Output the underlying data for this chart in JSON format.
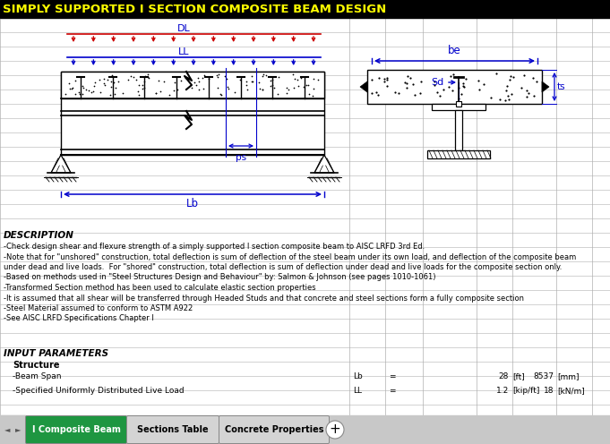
{
  "title": "SIMPLY SUPPORTED I SECTION COMPOSITE BEAM DESIGN",
  "title_bg": "#000000",
  "title_color": "#FFFF00",
  "bg_color": "#C0C0C0",
  "cell_bg": "#FFFFFF",
  "grid_color": "#B0B0B0",
  "blue": "#0000CC",
  "red": "#CC0000",
  "description_title": "DESCRIPTION",
  "description_lines": [
    "-Check design shear and flexure strength of a simply supported I section composite beam to AISC LRFD 3rd Ed.",
    "-Note that for \"unshored\" construction, total deflection is sum of deflection of the steel beam under its own load, and deflection of the composite beam",
    "under dead and live loads.  For \"shored\" construction, total deflection is sum of deflection under dead and live loads for the composite section only.",
    "-Based on methods used in \"Steel Structures Design and Behaviour\" by: Salmon & Johnson (see pages 1010-1061)",
    "-Transformed Section method has been used to calculate elastic section properties",
    "-It is assumed that all shear will be transferred through Headed Studs and that concrete and steel sections form a fully composite section",
    "-Steel Material assumed to conform to ASTM A922",
    "-See AISC LRFD Specifications Chapter I"
  ],
  "input_title": "INPUT PARAMETERS",
  "structure_label": "Structure",
  "beam_span_label": "-Beam Span",
  "beam_span_symbol": "Lb",
  "beam_span_eq": "=",
  "beam_span_val1": "28",
  "beam_span_unit1": "[ft]",
  "beam_span_val2": "8537",
  "beam_span_unit2": "[mm]",
  "live_load_label": "-Specified Uniformly Distributed Live Load",
  "live_load_symbol": "LL",
  "live_load_eq": "=",
  "live_load_val1": "1.2",
  "live_load_unit1": "[kip/ft]",
  "live_load_val2": "18",
  "live_load_unit2": "[kN/m]",
  "tabs": [
    "I Composite Beam",
    "Sections Table",
    "Concrete Properties"
  ],
  "tab_active_color": "#1E9641",
  "tab_active_text": "#FFFFFF",
  "tab_inactive_color": "#D4D4D4",
  "tab_inactive_text": "#000000"
}
